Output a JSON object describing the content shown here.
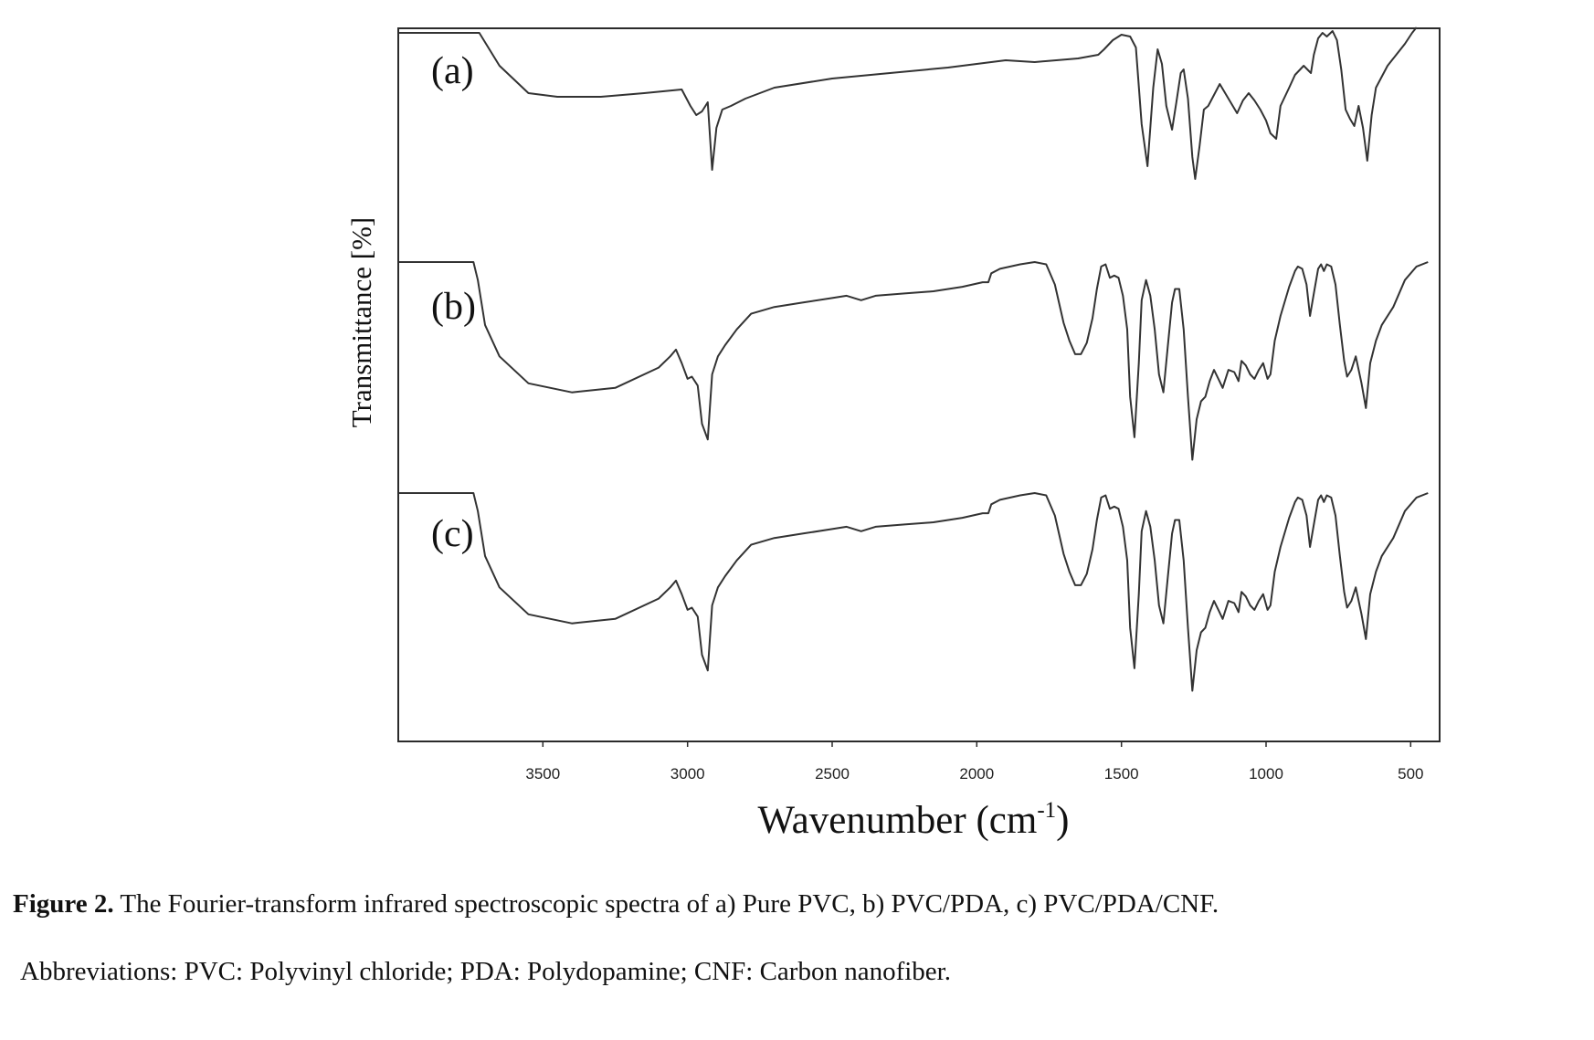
{
  "caption": {
    "label": "Figure 2.",
    "text": " The Fourier-transform infrared spectroscopic spectra of a) Pure PVC, b) PVC/PDA, c) PVC/PDA/CNF."
  },
  "abbreviations": "Abbreviations: PVC: Polyvinyl chloride; PDA: Polydopamine; CNF: Carbon nanofiber.",
  "chart_data": {
    "type": "line",
    "title": "",
    "xlabel": "Wavenumber (cm",
    "xlabel_sup": "-1",
    "xlabel_close": ")",
    "ylabel": "Transmittance [%]",
    "xlim": [
      4000,
      400
    ],
    "x_reversed": true,
    "y_ticks_shown": false,
    "grid": false,
    "x_ticks": [
      3500,
      3000,
      2500,
      2000,
      1500,
      1000,
      500
    ],
    "x_tick_labels": [
      "3500",
      "3000",
      "2500",
      "2000",
      "1500",
      "1000",
      "500"
    ],
    "line_color": "#333333",
    "series": [
      {
        "name": "(a)",
        "points": [
          [
            3720,
            100
          ],
          [
            3650,
            82
          ],
          [
            3550,
            67
          ],
          [
            3450,
            65
          ],
          [
            3300,
            65
          ],
          [
            3150,
            67
          ],
          [
            3020,
            69
          ],
          [
            2990,
            60
          ],
          [
            2970,
            55
          ],
          [
            2950,
            57
          ],
          [
            2930,
            62
          ],
          [
            2915,
            25
          ],
          [
            2900,
            48
          ],
          [
            2880,
            58
          ],
          [
            2850,
            60
          ],
          [
            2800,
            64
          ],
          [
            2700,
            70
          ],
          [
            2500,
            75
          ],
          [
            2300,
            78
          ],
          [
            2100,
            81
          ],
          [
            2000,
            83
          ],
          [
            1900,
            85
          ],
          [
            1800,
            84
          ],
          [
            1650,
            86
          ],
          [
            1580,
            88
          ],
          [
            1560,
            91
          ],
          [
            1530,
            96
          ],
          [
            1500,
            99
          ],
          [
            1470,
            98
          ],
          [
            1450,
            92
          ],
          [
            1430,
            50
          ],
          [
            1410,
            27
          ],
          [
            1390,
            70
          ],
          [
            1375,
            91
          ],
          [
            1360,
            83
          ],
          [
            1345,
            60
          ],
          [
            1325,
            47
          ],
          [
            1310,
            62
          ],
          [
            1295,
            78
          ],
          [
            1285,
            80
          ],
          [
            1270,
            64
          ],
          [
            1255,
            32
          ],
          [
            1245,
            20
          ],
          [
            1230,
            38
          ],
          [
            1215,
            58
          ],
          [
            1200,
            60
          ],
          [
            1180,
            66
          ],
          [
            1160,
            72
          ],
          [
            1130,
            64
          ],
          [
            1100,
            56
          ],
          [
            1080,
            63
          ],
          [
            1060,
            67
          ],
          [
            1040,
            63
          ],
          [
            1020,
            58
          ],
          [
            1000,
            52
          ],
          [
            985,
            45
          ],
          [
            965,
            42
          ],
          [
            950,
            60
          ],
          [
            920,
            70
          ],
          [
            900,
            77
          ],
          [
            870,
            82
          ],
          [
            845,
            78
          ],
          [
            835,
            88
          ],
          [
            820,
            97
          ],
          [
            805,
            100
          ],
          [
            790,
            98
          ],
          [
            770,
            101
          ],
          [
            755,
            96
          ],
          [
            740,
            80
          ],
          [
            725,
            58
          ],
          [
            710,
            53
          ],
          [
            695,
            49
          ],
          [
            680,
            60
          ],
          [
            665,
            48
          ],
          [
            650,
            30
          ],
          [
            635,
            55
          ],
          [
            620,
            70
          ],
          [
            580,
            82
          ],
          [
            550,
            88
          ],
          [
            520,
            94
          ],
          [
            495,
            100
          ],
          [
            480,
            103
          ]
        ]
      },
      {
        "name": "(b)",
        "points": [
          [
            3780,
            100
          ],
          [
            3740,
            100
          ],
          [
            3725,
            92
          ],
          [
            3700,
            72
          ],
          [
            3650,
            58
          ],
          [
            3550,
            46
          ],
          [
            3400,
            42
          ],
          [
            3250,
            44
          ],
          [
            3100,
            53
          ],
          [
            3060,
            58
          ],
          [
            3040,
            61
          ],
          [
            3020,
            55
          ],
          [
            3000,
            48
          ],
          [
            2985,
            49
          ],
          [
            2965,
            45
          ],
          [
            2950,
            28
          ],
          [
            2930,
            21
          ],
          [
            2915,
            50
          ],
          [
            2895,
            58
          ],
          [
            2870,
            63
          ],
          [
            2830,
            70
          ],
          [
            2780,
            77
          ],
          [
            2700,
            80
          ],
          [
            2600,
            82
          ],
          [
            2500,
            84
          ],
          [
            2450,
            85
          ],
          [
            2400,
            83
          ],
          [
            2350,
            85
          ],
          [
            2250,
            86
          ],
          [
            2150,
            87
          ],
          [
            2050,
            89
          ],
          [
            1980,
            91
          ],
          [
            1960,
            91
          ],
          [
            1950,
            95
          ],
          [
            1920,
            97
          ],
          [
            1850,
            99
          ],
          [
            1800,
            100
          ],
          [
            1760,
            99
          ],
          [
            1730,
            90
          ],
          [
            1700,
            73
          ],
          [
            1680,
            65
          ],
          [
            1660,
            59
          ],
          [
            1640,
            59
          ],
          [
            1620,
            64
          ],
          [
            1600,
            75
          ],
          [
            1585,
            88
          ],
          [
            1570,
            98
          ],
          [
            1555,
            99
          ],
          [
            1540,
            93
          ],
          [
            1525,
            94
          ],
          [
            1510,
            93
          ],
          [
            1495,
            85
          ],
          [
            1480,
            70
          ],
          [
            1470,
            40
          ],
          [
            1455,
            22
          ],
          [
            1440,
            55
          ],
          [
            1430,
            83
          ],
          [
            1415,
            92
          ],
          [
            1400,
            85
          ],
          [
            1385,
            70
          ],
          [
            1370,
            50
          ],
          [
            1355,
            42
          ],
          [
            1340,
            62
          ],
          [
            1325,
            82
          ],
          [
            1315,
            88
          ],
          [
            1300,
            88
          ],
          [
            1285,
            70
          ],
          [
            1270,
            40
          ],
          [
            1255,
            12
          ],
          [
            1240,
            30
          ],
          [
            1225,
            38
          ],
          [
            1210,
            40
          ],
          [
            1195,
            47
          ],
          [
            1180,
            52
          ],
          [
            1165,
            48
          ],
          [
            1150,
            44
          ],
          [
            1130,
            52
          ],
          [
            1110,
            51
          ],
          [
            1095,
            47
          ],
          [
            1085,
            56
          ],
          [
            1070,
            54
          ],
          [
            1055,
            50
          ],
          [
            1040,
            48
          ],
          [
            1025,
            52
          ],
          [
            1010,
            55
          ],
          [
            995,
            48
          ],
          [
            985,
            50
          ],
          [
            970,
            65
          ],
          [
            950,
            76
          ],
          [
            920,
            89
          ],
          [
            900,
            96
          ],
          [
            890,
            98
          ],
          [
            875,
            97
          ],
          [
            860,
            90
          ],
          [
            848,
            76
          ],
          [
            835,
            86
          ],
          [
            820,
            97
          ],
          [
            810,
            99
          ],
          [
            800,
            96
          ],
          [
            790,
            99
          ],
          [
            775,
            98
          ],
          [
            760,
            90
          ],
          [
            745,
            72
          ],
          [
            730,
            56
          ],
          [
            720,
            49
          ],
          [
            705,
            52
          ],
          [
            690,
            58
          ],
          [
            670,
            46
          ],
          [
            655,
            35
          ],
          [
            640,
            55
          ],
          [
            620,
            65
          ],
          [
            600,
            72
          ],
          [
            560,
            80
          ],
          [
            520,
            92
          ],
          [
            480,
            98
          ],
          [
            440,
            100
          ]
        ]
      },
      {
        "name": "(c)",
        "points": [
          [
            3790,
            100
          ],
          [
            3740,
            100
          ],
          [
            3725,
            92
          ],
          [
            3700,
            72
          ],
          [
            3650,
            58
          ],
          [
            3550,
            46
          ],
          [
            3400,
            42
          ],
          [
            3250,
            44
          ],
          [
            3100,
            53
          ],
          [
            3060,
            58
          ],
          [
            3040,
            61
          ],
          [
            3020,
            55
          ],
          [
            3000,
            48
          ],
          [
            2985,
            49
          ],
          [
            2965,
            45
          ],
          [
            2950,
            28
          ],
          [
            2930,
            21
          ],
          [
            2915,
            50
          ],
          [
            2895,
            58
          ],
          [
            2870,
            63
          ],
          [
            2830,
            70
          ],
          [
            2780,
            77
          ],
          [
            2700,
            80
          ],
          [
            2600,
            82
          ],
          [
            2500,
            84
          ],
          [
            2450,
            85
          ],
          [
            2400,
            83
          ],
          [
            2350,
            85
          ],
          [
            2250,
            86
          ],
          [
            2150,
            87
          ],
          [
            2050,
            89
          ],
          [
            1980,
            91
          ],
          [
            1960,
            91
          ],
          [
            1950,
            95
          ],
          [
            1920,
            97
          ],
          [
            1850,
            99
          ],
          [
            1800,
            100
          ],
          [
            1760,
            99
          ],
          [
            1730,
            90
          ],
          [
            1700,
            73
          ],
          [
            1680,
            65
          ],
          [
            1660,
            59
          ],
          [
            1640,
            59
          ],
          [
            1620,
            64
          ],
          [
            1600,
            75
          ],
          [
            1585,
            88
          ],
          [
            1570,
            98
          ],
          [
            1555,
            99
          ],
          [
            1540,
            93
          ],
          [
            1525,
            94
          ],
          [
            1510,
            93
          ],
          [
            1495,
            85
          ],
          [
            1480,
            70
          ],
          [
            1470,
            40
          ],
          [
            1455,
            22
          ],
          [
            1440,
            55
          ],
          [
            1430,
            83
          ],
          [
            1415,
            92
          ],
          [
            1400,
            85
          ],
          [
            1385,
            70
          ],
          [
            1370,
            50
          ],
          [
            1355,
            42
          ],
          [
            1340,
            62
          ],
          [
            1325,
            82
          ],
          [
            1315,
            88
          ],
          [
            1300,
            88
          ],
          [
            1285,
            70
          ],
          [
            1270,
            40
          ],
          [
            1255,
            12
          ],
          [
            1240,
            30
          ],
          [
            1225,
            38
          ],
          [
            1210,
            40
          ],
          [
            1195,
            47
          ],
          [
            1180,
            52
          ],
          [
            1165,
            48
          ],
          [
            1150,
            44
          ],
          [
            1130,
            52
          ],
          [
            1110,
            51
          ],
          [
            1095,
            47
          ],
          [
            1085,
            56
          ],
          [
            1070,
            54
          ],
          [
            1055,
            50
          ],
          [
            1040,
            48
          ],
          [
            1025,
            52
          ],
          [
            1010,
            55
          ],
          [
            995,
            48
          ],
          [
            985,
            50
          ],
          [
            970,
            65
          ],
          [
            950,
            76
          ],
          [
            920,
            89
          ],
          [
            900,
            96
          ],
          [
            890,
            98
          ],
          [
            875,
            97
          ],
          [
            860,
            90
          ],
          [
            848,
            76
          ],
          [
            835,
            86
          ],
          [
            820,
            97
          ],
          [
            810,
            99
          ],
          [
            800,
            96
          ],
          [
            790,
            99
          ],
          [
            775,
            98
          ],
          [
            760,
            90
          ],
          [
            745,
            72
          ],
          [
            730,
            56
          ],
          [
            720,
            49
          ],
          [
            705,
            52
          ],
          [
            690,
            58
          ],
          [
            670,
            46
          ],
          [
            655,
            35
          ],
          [
            640,
            55
          ],
          [
            620,
            65
          ],
          [
            600,
            72
          ],
          [
            560,
            80
          ],
          [
            520,
            92
          ],
          [
            480,
            98
          ],
          [
            440,
            100
          ]
        ]
      }
    ]
  }
}
